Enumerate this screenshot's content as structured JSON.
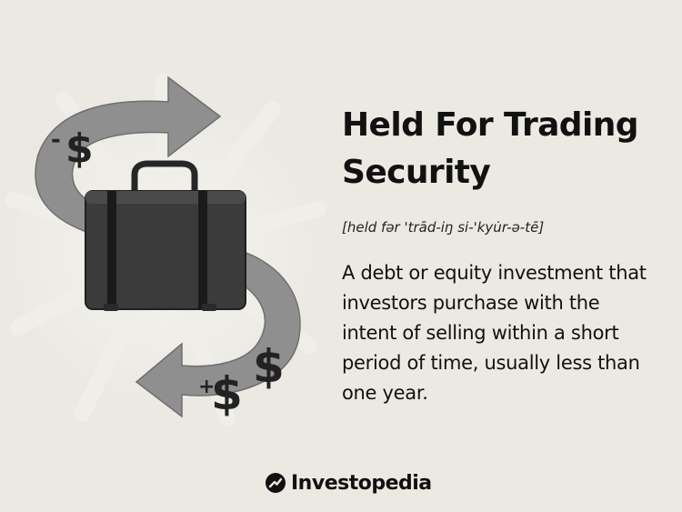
{
  "term": {
    "title": "Held For Trading Security",
    "pronunciation": "[held fər 'trād-iŋ si-'kyu̇r-ə-tē]",
    "definition": "A debt or equity investment that investors purchase with the intent of selling within a short period of time, usually less than one year."
  },
  "illustration": {
    "minus_sign": "-",
    "plus_sign": "+",
    "dollar_symbol": "$",
    "subject": "briefcase-icon",
    "arrows": "s-shaped-arrow-icon"
  },
  "brand": {
    "name": "Investopedia",
    "icon": "investopedia-logo-icon"
  },
  "colors": {
    "background": "#ebe9e2",
    "text": "#111111",
    "arrow_gray": "#8f8f8f",
    "briefcase": "#3b3b3b"
  }
}
